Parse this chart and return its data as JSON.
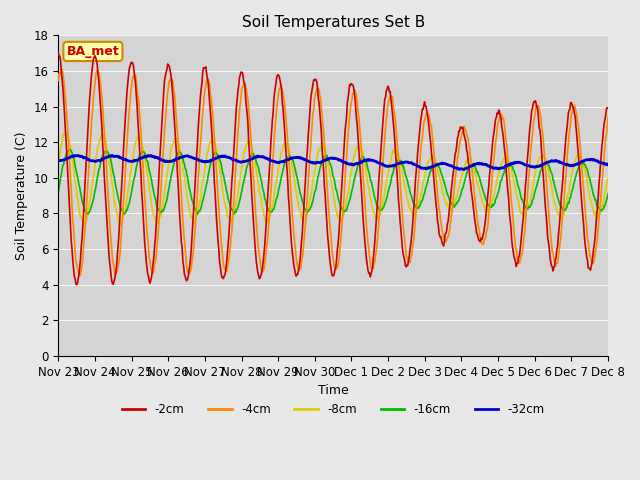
{
  "title": "Soil Temperatures Set B",
  "xlabel": "Time",
  "ylabel": "Soil Temperature (C)",
  "ylim": [
    0,
    18
  ],
  "annotation": "BA_met",
  "fig_facecolor": "#e8e8e8",
  "ax_facecolor": "#d4d4d4",
  "series_colors": {
    "-2cm": "#cc0000",
    "-4cm": "#ff8800",
    "-8cm": "#ddcc00",
    "-16cm": "#00bb00",
    "-32cm": "#0000cc"
  },
  "x_tick_labels": [
    "Nov 23",
    "Nov 24",
    "Nov 25",
    "Nov 26",
    "Nov 27",
    "Nov 28",
    "Nov 29",
    "Nov 30",
    "Dec 1",
    "Dec 2",
    "Dec 3",
    "Dec 4",
    "Dec 5",
    "Dec 6",
    "Dec 7",
    "Dec 8"
  ],
  "line_width": 1.2
}
